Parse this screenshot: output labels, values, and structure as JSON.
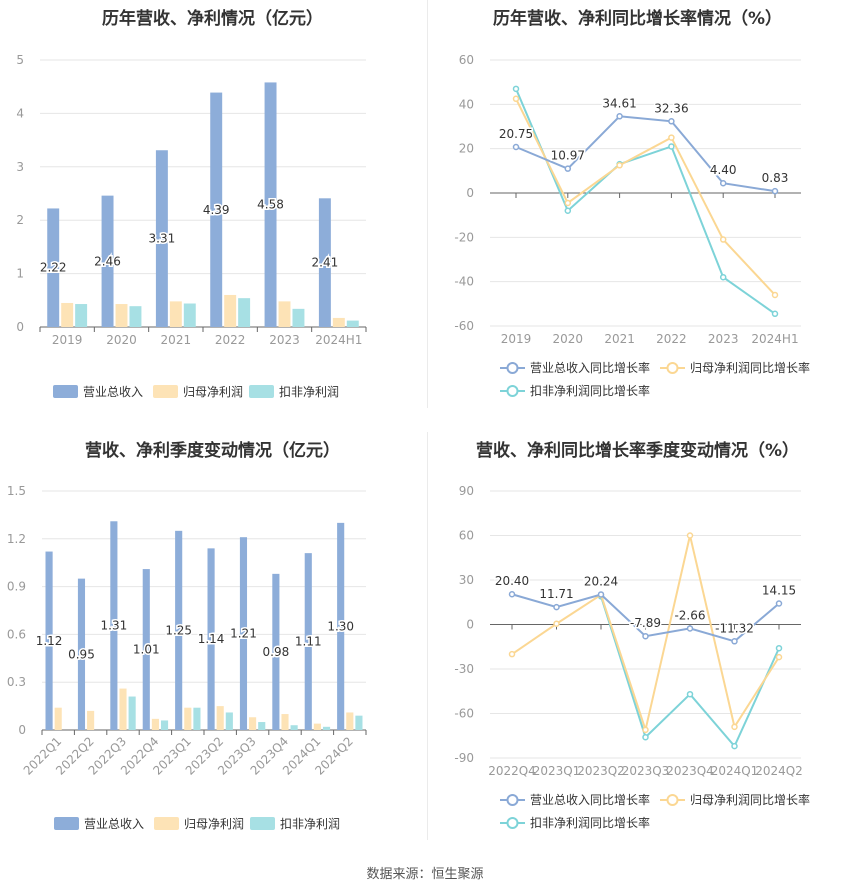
{
  "source_text": "数据来源：恒生聚源",
  "colors": {
    "revenue": "#8dadd9",
    "parent_profit": "#fde3b6",
    "deducted_profit": "#a7e0e4",
    "line_revenue": "#8aa9d6",
    "line_parent": "#fbd793",
    "line_deducted": "#7dd3d8",
    "grid": "#e6e6e6",
    "axis_text": "#999999"
  },
  "chart_data": [
    {
      "type": "bar",
      "title": "历年营收、净利情况（亿元）",
      "categories": [
        "2019",
        "2020",
        "2021",
        "2022",
        "2023",
        "2024H1"
      ],
      "ylim": [
        0,
        5
      ],
      "yticks": [
        "0",
        "1",
        "2",
        "3",
        "4",
        "5"
      ],
      "series": [
        {
          "name": "营业总收入",
          "values": [
            2.22,
            2.46,
            3.31,
            4.39,
            4.58,
            2.41
          ],
          "labels": [
            "2.22",
            "2.46",
            "3.31",
            "4.39",
            "4.58",
            "2.41"
          ]
        },
        {
          "name": "归母净利润",
          "values": [
            0.45,
            0.43,
            0.48,
            0.6,
            0.48,
            0.17
          ]
        },
        {
          "name": "扣非净利润",
          "values": [
            0.43,
            0.39,
            0.44,
            0.54,
            0.34,
            0.12
          ]
        }
      ],
      "grid": true,
      "legend": "bottom"
    },
    {
      "type": "line",
      "title": "历年营收、净利同比增长率情况（%）",
      "categories": [
        "2019",
        "2020",
        "2021",
        "2022",
        "2023",
        "2024H1"
      ],
      "ylim": [
        -60,
        60
      ],
      "yticks": [
        "60",
        "40",
        "20",
        "0",
        "-20",
        "-40",
        "-60"
      ],
      "series": [
        {
          "name": "营业总收入同比增长率",
          "values": [
            20.75,
            10.97,
            34.61,
            32.36,
            4.4,
            0.83
          ],
          "labels": [
            "20.75",
            "10.97",
            "34.61",
            "32.36",
            "4.40",
            "0.83"
          ]
        },
        {
          "name": "归母净利润同比增长率",
          "values": [
            42.5,
            -4.5,
            12.5,
            25.0,
            -21.0,
            -46.0
          ]
        },
        {
          "name": "扣非净利润同比增长率",
          "values": [
            47.0,
            -8.0,
            13.0,
            21.0,
            -38.0,
            -54.5
          ]
        }
      ],
      "grid": true,
      "legend": "bottom"
    },
    {
      "type": "bar",
      "title": "营收、净利季度变动情况（亿元）",
      "categories": [
        "2022Q1",
        "2022Q2",
        "2022Q3",
        "2022Q4",
        "2023Q1",
        "2023Q2",
        "2023Q3",
        "2023Q4",
        "2024Q1",
        "2024Q2"
      ],
      "ylim": [
        0,
        1.5
      ],
      "yticks": [
        "0",
        "0.3",
        "0.6",
        "0.9",
        "1.2",
        "1.5"
      ],
      "series": [
        {
          "name": "营业总收入",
          "values": [
            1.12,
            0.95,
            1.31,
            1.01,
            1.25,
            1.14,
            1.21,
            0.98,
            1.11,
            1.3
          ],
          "labels": [
            "1.12",
            "0.95",
            "1.31",
            "1.01",
            "1.25",
            "1.14",
            "1.21",
            "0.98",
            "1.11",
            "1.30"
          ]
        },
        {
          "name": "归母净利润",
          "values": [
            0.14,
            0.12,
            0.26,
            0.07,
            0.14,
            0.15,
            0.08,
            0.1,
            0.04,
            0.11
          ]
        },
        {
          "name": "扣非净利润",
          "values": [
            0.0,
            0.0,
            0.21,
            0.06,
            0.14,
            0.11,
            0.05,
            0.03,
            0.02,
            0.09
          ]
        }
      ],
      "grid": true,
      "legend": "bottom"
    },
    {
      "type": "line",
      "title": "营收、净利同比增长率季度变动情况（%）",
      "categories": [
        "2022Q4",
        "2023Q1",
        "2023Q2",
        "2023Q3",
        "2023Q4",
        "2024Q1",
        "2024Q2"
      ],
      "ylim": [
        -90,
        90
      ],
      "yticks": [
        "90",
        "60",
        "30",
        "0",
        "-30",
        "-60",
        "-90"
      ],
      "series": [
        {
          "name": "营业总收入同比增长率",
          "values": [
            20.4,
            11.71,
            20.24,
            -7.89,
            -2.66,
            -11.32,
            14.15
          ],
          "labels": [
            "20.40",
            "11.71",
            "20.24",
            "-7.89",
            "-2.66",
            "-11.32",
            "14.15"
          ]
        },
        {
          "name": "归母净利润同比增长率",
          "values": [
            -20.0,
            0.5,
            20.0,
            -71.0,
            60.0,
            -69.0,
            -22.0
          ]
        },
        {
          "name": "扣非净利润同比增长率",
          "values": [
            null,
            null,
            19.0,
            -76.0,
            -47.0,
            -82.0,
            -16.0
          ]
        }
      ],
      "grid": true,
      "legend": "bottom"
    }
  ]
}
